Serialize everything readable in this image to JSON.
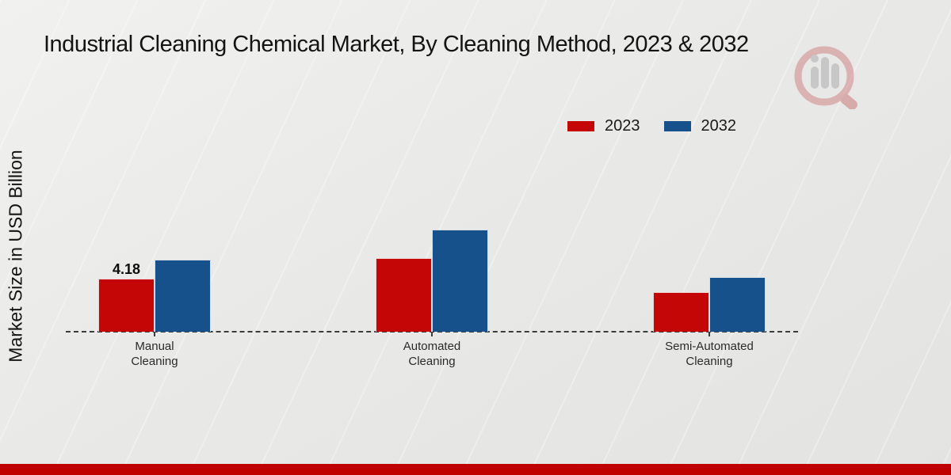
{
  "title": "Industrial Cleaning Chemical Market, By Cleaning Method, 2023 & 2032",
  "y_axis_label": "Market Size in USD Billion",
  "footer": {
    "bar_color": "#c00000"
  },
  "watermark_icon": "magnifier-bar-chart-logo",
  "chart_data": {
    "type": "bar",
    "categories": [
      "Manual Cleaning",
      "Automated Cleaning",
      "Semi-Automated Cleaning"
    ],
    "series": [
      {
        "name": "2023",
        "color": "#c40606",
        "values": [
          4.18,
          5.8,
          3.1
        ]
      },
      {
        "name": "2032",
        "color": "#17518c",
        "values": [
          5.7,
          8.05,
          4.3
        ]
      }
    ],
    "data_labels": [
      [
        "4.18",
        "",
        ""
      ],
      [
        "",
        "",
        ""
      ]
    ],
    "title": "Industrial Cleaning Chemical Market, By Cleaning Method, 2023 & 2032",
    "xlabel": "",
    "ylabel": "Market Size in USD Billion",
    "ylim": [
      0,
      10
    ],
    "grid": false,
    "axis_line": "dashed-baseline-only",
    "legend_position": "top-right"
  }
}
